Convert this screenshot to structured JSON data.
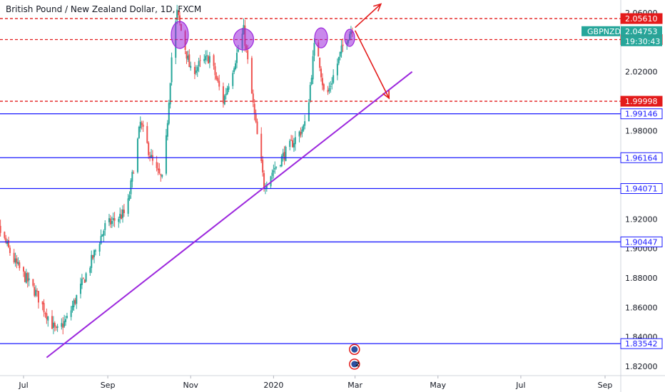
{
  "title": "British Pound / New Zealand Dollar, 1D, FXCM",
  "chart_data": {
    "type": "candlestick",
    "symbol": "GBPNZD",
    "ylim": [
      1.815,
      2.065
    ],
    "y_ticks": [
      "2.06000",
      "2.02000",
      "1.98000",
      "1.92000",
      "1.90000",
      "1.88000",
      "1.86000",
      "1.84000",
      "1.82000"
    ],
    "x_ticks": [
      "Jul",
      "Sep",
      "Nov",
      "2020",
      "Mar",
      "May",
      "Jul",
      "Sep"
    ],
    "x_tick_dates": [
      "2019-07-01",
      "2019-09-01",
      "2019-11-01",
      "2020-01-01",
      "2020-03-01",
      "2020-05-01",
      "2020-07-01",
      "2020-09-01"
    ],
    "date_range": [
      "2019-06-01",
      "2020-09-10"
    ],
    "price_key_points": [
      {
        "date": "2019-06-01",
        "price": 1.94
      },
      {
        "date": "2019-06-12",
        "price": 1.915
      },
      {
        "date": "2019-06-25",
        "price": 1.89
      },
      {
        "date": "2019-07-10",
        "price": 1.87
      },
      {
        "date": "2019-07-25",
        "price": 1.843
      },
      {
        "date": "2019-08-02",
        "price": 1.852
      },
      {
        "date": "2019-08-15",
        "price": 1.88
      },
      {
        "date": "2019-08-30",
        "price": 1.915
      },
      {
        "date": "2019-09-15",
        "price": 1.925
      },
      {
        "date": "2019-09-25",
        "price": 1.985
      },
      {
        "date": "2019-10-05",
        "price": 1.955
      },
      {
        "date": "2019-10-12",
        "price": 1.945
      },
      {
        "date": "2019-10-18",
        "price": 2.03
      },
      {
        "date": "2019-10-22",
        "price": 2.06
      },
      {
        "date": "2019-11-01",
        "price": 2.02
      },
      {
        "date": "2019-11-15",
        "price": 2.03
      },
      {
        "date": "2019-11-25",
        "price": 2.0
      },
      {
        "date": "2019-12-10",
        "price": 2.048
      },
      {
        "date": "2019-12-18",
        "price": 1.99
      },
      {
        "date": "2019-12-25",
        "price": 1.943
      },
      {
        "date": "2020-01-02",
        "price": 1.955
      },
      {
        "date": "2020-01-12",
        "price": 1.968
      },
      {
        "date": "2020-01-25",
        "price": 1.985
      },
      {
        "date": "2020-02-01",
        "price": 2.045
      },
      {
        "date": "2020-02-08",
        "price": 2.0
      },
      {
        "date": "2020-02-15",
        "price": 2.02
      },
      {
        "date": "2020-02-22",
        "price": 2.04
      },
      {
        "date": "2020-02-28",
        "price": 2.05
      }
    ],
    "horizontal_levels": [
      {
        "price": 2.0561,
        "label": "2.05610",
        "style": "dashed",
        "color": "#e31b1b"
      },
      {
        "price": 2.04186,
        "label": "2.04186",
        "style": "dashed",
        "color": "#e31b1b"
      },
      {
        "price": 1.99998,
        "label": "1.99998",
        "style": "dashed",
        "color": "#e31b1b"
      },
      {
        "price": 1.99146,
        "label": "1.99146",
        "style": "solid",
        "color": "#1a1aff"
      },
      {
        "price": 1.96164,
        "label": "1.96164",
        "style": "solid",
        "color": "#1a1aff"
      },
      {
        "price": 1.94071,
        "label": "1.94071",
        "style": "solid",
        "color": "#1a1aff"
      },
      {
        "price": 1.90447,
        "label": "1.90447",
        "style": "solid",
        "color": "#1a1aff"
      },
      {
        "price": 1.83542,
        "label": "1.83542",
        "style": "solid",
        "color": "#1a1aff"
      }
    ],
    "price_tags": [
      {
        "label": "GBPNZD",
        "value": "2.04753",
        "color": "#26a69a"
      },
      {
        "label": "",
        "value": "19:30:43",
        "color": "#26a69a"
      }
    ],
    "trendline": {
      "from": {
        "date": "2019-07-18",
        "price": 1.826
      },
      "to": {
        "date": "2020-04-12",
        "price": 2.02
      },
      "color": "#9c27dd"
    },
    "highlight_ellipses": [
      {
        "date": "2019-10-24",
        "price": 2.045,
        "color": "#9c27dd"
      },
      {
        "date": "2019-12-10",
        "price": 2.042,
        "color": "#9c27dd"
      },
      {
        "date": "2020-02-05",
        "price": 2.043,
        "color": "#9c27dd"
      },
      {
        "date": "2020-02-26",
        "price": 2.043,
        "color": "#9c27dd"
      }
    ],
    "annotation_arrows": [
      {
        "from": {
          "date": "2020-03-01",
          "price": 2.05
        },
        "to": {
          "date": "2020-03-20",
          "price": 2.066
        },
        "color": "#e31b1b",
        "direction": "up"
      },
      {
        "from": {
          "date": "2020-03-01",
          "price": 2.048
        },
        "to": {
          "date": "2020-03-26",
          "price": 2.002
        },
        "color": "#e31b1b",
        "direction": "down"
      }
    ],
    "event_markers": [
      {
        "date": "2020-02-28",
        "price": 1.8315,
        "label": ""
      },
      {
        "date": "2020-02-28",
        "price": 1.8215,
        "label": "2"
      }
    ],
    "colors": {
      "up": "#26a69a",
      "down": "#ef5350",
      "background": "#ffffff",
      "axis_text": "#131722"
    }
  }
}
